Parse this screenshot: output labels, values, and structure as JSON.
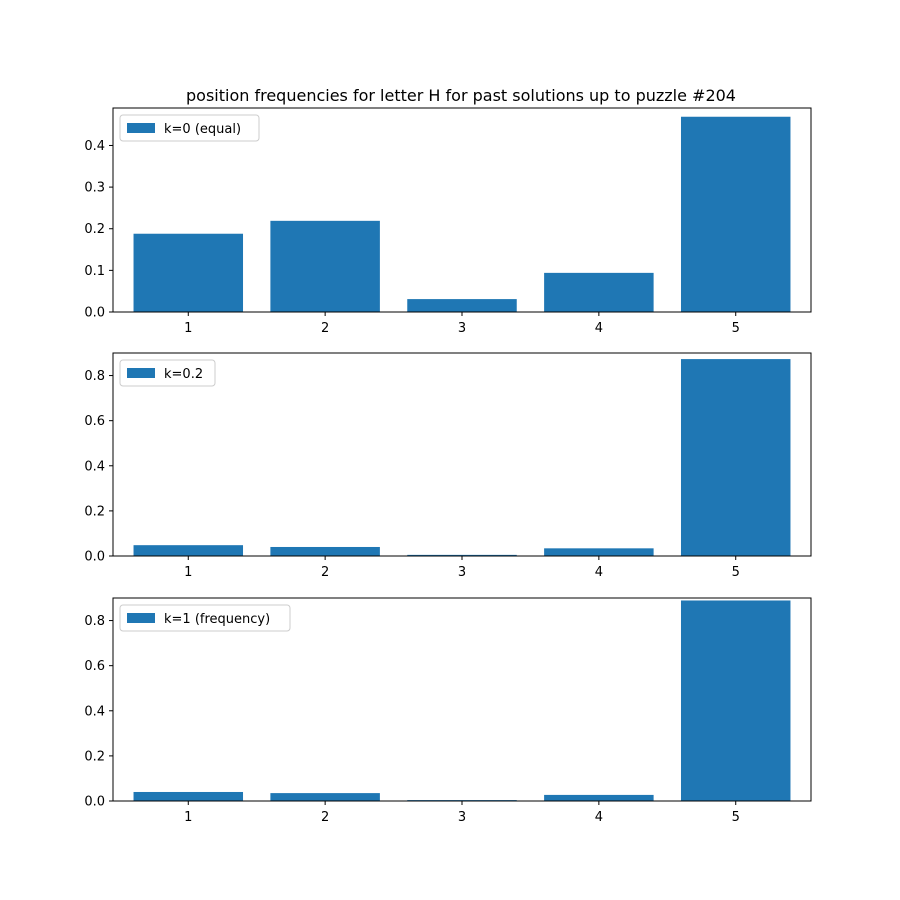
{
  "figure": {
    "title": "position frequencies for letter H for past solutions up to puzzle #204",
    "bar_color": "#1f77b4"
  },
  "chart_data": [
    {
      "type": "bar",
      "categories": [
        "1",
        "2",
        "3",
        "4",
        "5"
      ],
      "series": [
        {
          "name": "k=0 (equal)",
          "values": [
            0.188,
            0.219,
            0.031,
            0.094,
            0.469
          ]
        }
      ],
      "ylim": [
        0,
        0.49
      ],
      "yticks": [
        0.0,
        0.1,
        0.2,
        0.3,
        0.4
      ],
      "ytick_labels": [
        "0.0",
        "0.1",
        "0.2",
        "0.3",
        "0.4"
      ],
      "legend": "top-left",
      "grid": false
    },
    {
      "type": "bar",
      "categories": [
        "1",
        "2",
        "3",
        "4",
        "5"
      ],
      "series": [
        {
          "name": "k=0.2",
          "values": [
            0.048,
            0.04,
            0.005,
            0.034,
            0.873
          ]
        }
      ],
      "ylim": [
        0,
        0.9
      ],
      "yticks": [
        0.0,
        0.2,
        0.4,
        0.6,
        0.8
      ],
      "ytick_labels": [
        "0.0",
        "0.2",
        "0.4",
        "0.6",
        "0.8"
      ],
      "legend": "top-left",
      "grid": false
    },
    {
      "type": "bar",
      "categories": [
        "1",
        "2",
        "3",
        "4",
        "5"
      ],
      "series": [
        {
          "name": "k=1 (frequency)",
          "values": [
            0.04,
            0.035,
            0.004,
            0.027,
            0.889
          ]
        }
      ],
      "ylim": [
        0,
        0.9
      ],
      "yticks": [
        0.0,
        0.2,
        0.4,
        0.6,
        0.8
      ],
      "ytick_labels": [
        "0.0",
        "0.2",
        "0.4",
        "0.6",
        "0.8"
      ],
      "legend": "top-left",
      "grid": false
    }
  ]
}
